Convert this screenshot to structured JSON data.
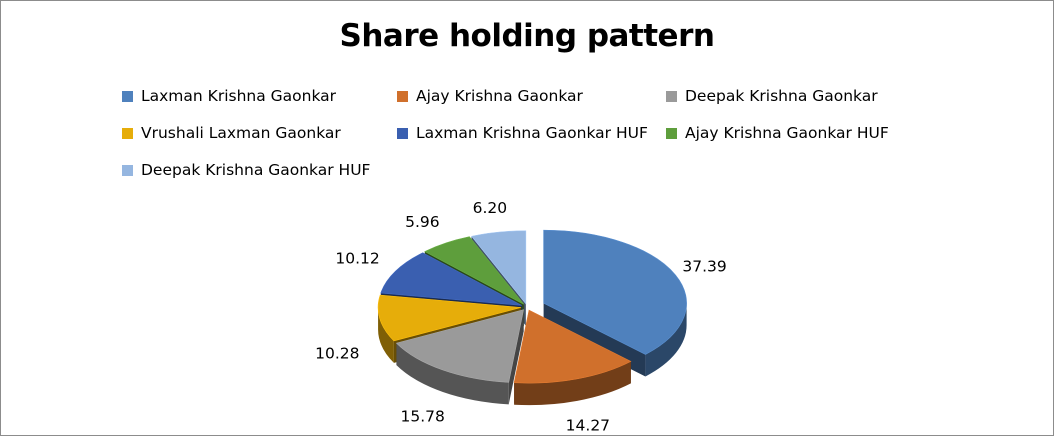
{
  "chart_data": {
    "type": "pie",
    "title": "Share holding pattern",
    "categories": [
      "Laxman Krishna Gaonkar",
      "Ajay Krishna Gaonkar",
      "Deepak Krishna Gaonkar",
      "Vrushali Laxman Gaonkar",
      "Laxman Krishna Gaonkar HUF",
      "Ajay Krishna Gaonkar HUF",
      "Deepak Krishna Gaonkar HUF"
    ],
    "values": [
      37.39,
      14.27,
      15.78,
      10.28,
      10.12,
      5.96,
      6.2
    ],
    "value_labels": [
      "37.39",
      "14.27",
      "15.78",
      "10.28",
      "10.12",
      "5.96",
      "6.20"
    ],
    "colors": [
      "#4f81bd",
      "#d0702c",
      "#9a9a9a",
      "#e6ad0a",
      "#3a5fb0",
      "#5e9e3c",
      "#95b6e0"
    ],
    "legend_position": "top",
    "style": "3d-exploded"
  }
}
